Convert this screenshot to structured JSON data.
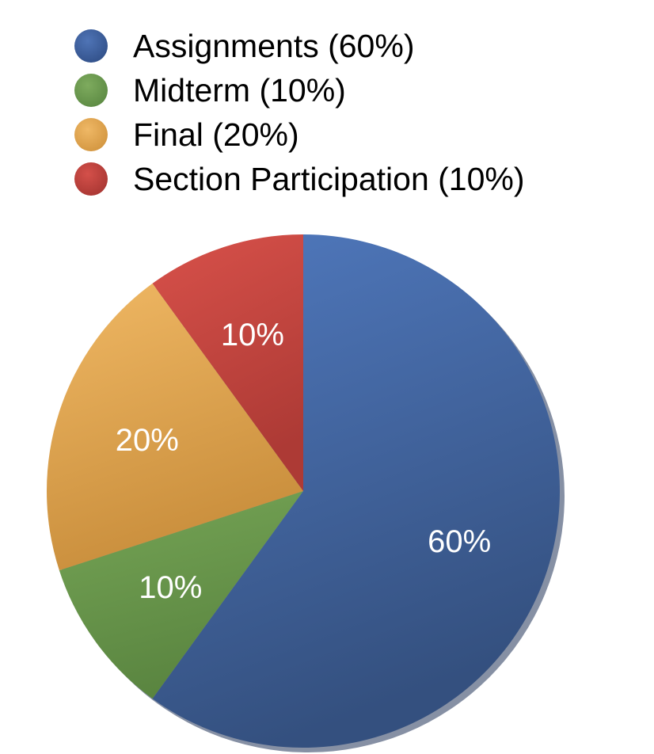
{
  "chart_data": {
    "type": "pie",
    "title": "",
    "categories": [
      "Assignments (60%)",
      "Midterm (10%)",
      "Final (20%)",
      "Section Participation (10%)"
    ],
    "values": [
      60,
      10,
      20,
      10
    ],
    "slice_labels": [
      "60%",
      "10%",
      "20%",
      "10%"
    ],
    "colors": [
      "#3a5a96",
      "#6f9a50",
      "#e3a64e",
      "#c24640"
    ],
    "start_angle_deg": 0,
    "direction": "clockwise",
    "legend_position": "top"
  }
}
